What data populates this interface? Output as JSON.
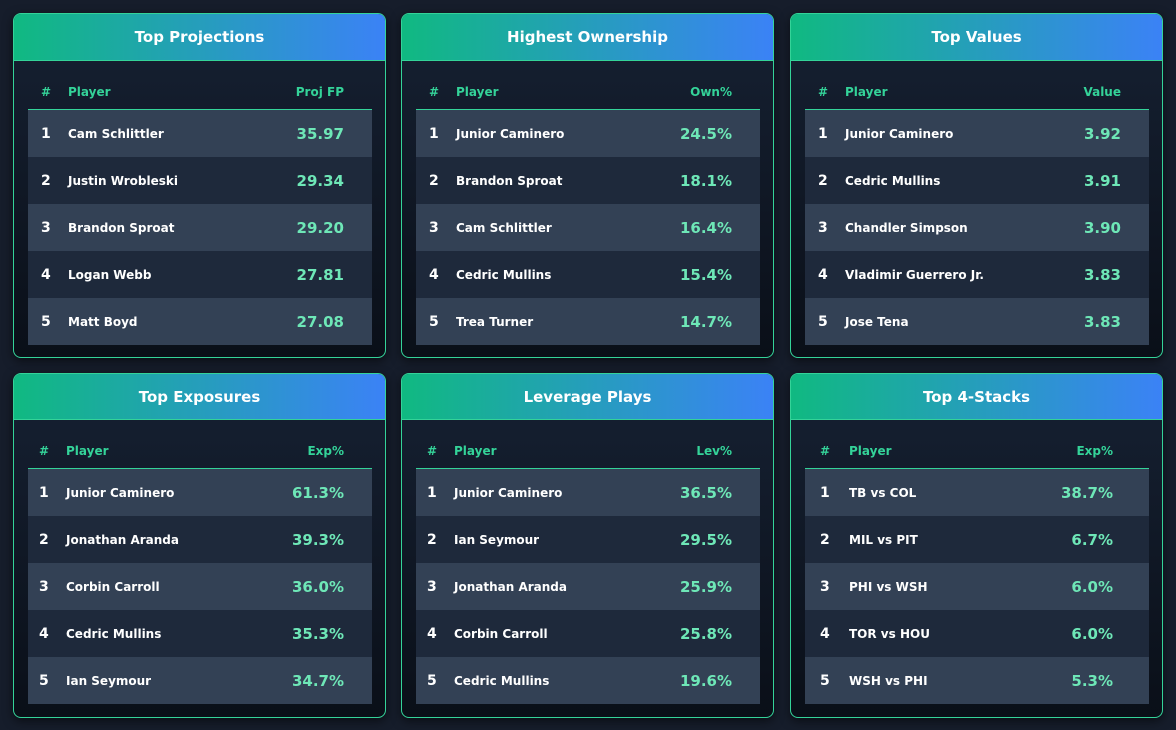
{
  "panels": [
    {
      "title": "Top Projections",
      "headers": {
        "rank": "#",
        "player": "Player",
        "value": "Proj FP"
      },
      "rows": [
        {
          "rank": "1",
          "player": "Cam Schlittler",
          "value": "35.97"
        },
        {
          "rank": "2",
          "player": "Justin Wrobleski",
          "value": "29.34"
        },
        {
          "rank": "3",
          "player": "Brandon Sproat",
          "value": "29.20"
        },
        {
          "rank": "4",
          "player": "Logan Webb",
          "value": "27.81"
        },
        {
          "rank": "5",
          "player": "Matt Boyd",
          "value": "27.08"
        }
      ]
    },
    {
      "title": "Highest Ownership",
      "headers": {
        "rank": "#",
        "player": "Player",
        "value": "Own%"
      },
      "rows": [
        {
          "rank": "1",
          "player": "Junior Caminero",
          "value": "24.5%"
        },
        {
          "rank": "2",
          "player": "Brandon Sproat",
          "value": "18.1%"
        },
        {
          "rank": "3",
          "player": "Cam Schlittler",
          "value": "16.4%"
        },
        {
          "rank": "4",
          "player": "Cedric Mullins",
          "value": "15.4%"
        },
        {
          "rank": "5",
          "player": "Trea Turner",
          "value": "14.7%"
        }
      ]
    },
    {
      "title": "Top Values",
      "headers": {
        "rank": "#",
        "player": "Player",
        "value": "Value"
      },
      "rows": [
        {
          "rank": "1",
          "player": "Junior Caminero",
          "value": "3.92"
        },
        {
          "rank": "2",
          "player": "Cedric Mullins",
          "value": "3.91"
        },
        {
          "rank": "3",
          "player": "Chandler Simpson",
          "value": "3.90"
        },
        {
          "rank": "4",
          "player": "Vladimir Guerrero Jr.",
          "value": "3.83"
        },
        {
          "rank": "5",
          "player": "Jose Tena",
          "value": "3.83"
        }
      ]
    },
    {
      "title": "Top Exposures",
      "headers": {
        "rank": "#",
        "player": "Player",
        "value": "Exp%"
      },
      "rows": [
        {
          "rank": "1",
          "player": "Junior Caminero",
          "value": "61.3%"
        },
        {
          "rank": "2",
          "player": "Jonathan Aranda",
          "value": "39.3%"
        },
        {
          "rank": "3",
          "player": "Corbin Carroll",
          "value": "36.0%"
        },
        {
          "rank": "4",
          "player": "Cedric Mullins",
          "value": "35.3%"
        },
        {
          "rank": "5",
          "player": "Ian Seymour",
          "value": "34.7%"
        }
      ]
    },
    {
      "title": "Leverage Plays",
      "headers": {
        "rank": "#",
        "player": "Player",
        "value": "Lev%"
      },
      "rows": [
        {
          "rank": "1",
          "player": "Junior Caminero",
          "value": "36.5%"
        },
        {
          "rank": "2",
          "player": "Ian Seymour",
          "value": "29.5%"
        },
        {
          "rank": "3",
          "player": "Jonathan Aranda",
          "value": "25.9%"
        },
        {
          "rank": "4",
          "player": "Corbin Carroll",
          "value": "25.8%"
        },
        {
          "rank": "5",
          "player": "Cedric Mullins",
          "value": "19.6%"
        }
      ]
    },
    {
      "title": "Top 4-Stacks",
      "headers": {
        "rank": "#",
        "player": "Player",
        "value": "Exp%"
      },
      "rows": [
        {
          "rank": "1",
          "player": "TB vs COL",
          "value": "38.7%"
        },
        {
          "rank": "2",
          "player": "MIL vs PIT",
          "value": "6.7%"
        },
        {
          "rank": "3",
          "player": "PHI vs WSH",
          "value": "6.0%"
        },
        {
          "rank": "4",
          "player": "TOR vs HOU",
          "value": "6.0%"
        },
        {
          "rank": "5",
          "player": "WSH vs PHI",
          "value": "5.3%"
        }
      ]
    }
  ],
  "colors": {
    "accent": "#34d399",
    "value_text": "#6ee7b7",
    "header_gradient_start": "#10b981",
    "header_gradient_end": "#3b82f6",
    "row_odd": "#334155",
    "row_even": "#1e293b"
  }
}
